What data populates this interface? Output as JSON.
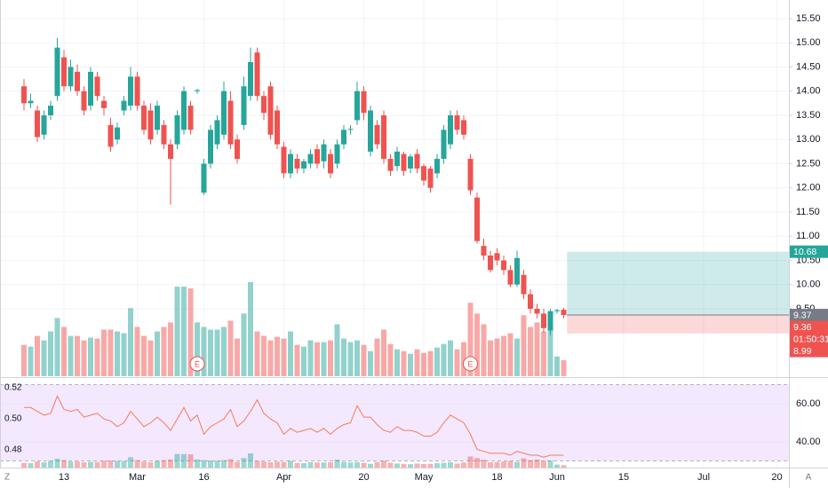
{
  "chart_data": [
    {
      "type": "candlestick",
      "up_color": "#26a69a",
      "down_color": "#ef5350",
      "grid": true,
      "x": [
        0,
        1,
        2,
        3,
        4,
        5,
        6,
        7,
        8,
        9,
        10,
        11,
        12,
        13,
        14,
        15,
        16,
        17,
        18,
        19,
        20,
        21,
        22,
        23,
        24,
        25,
        26,
        27,
        28,
        29,
        30,
        31,
        32,
        33,
        34,
        35,
        36,
        37,
        38,
        39,
        40,
        41,
        42,
        43,
        44,
        45,
        46,
        47,
        48,
        49,
        50,
        51,
        52,
        53,
        54,
        55,
        56,
        57,
        58,
        59,
        60,
        61,
        62,
        63,
        64,
        65,
        66,
        67,
        68,
        69,
        70,
        71,
        72,
        73,
        74,
        75,
        76,
        77,
        78,
        79,
        80,
        81
      ],
      "open": [
        14.1,
        13.75,
        13.6,
        13.1,
        13.5,
        13.9,
        14.7,
        14.1,
        14.4,
        14.0,
        13.7,
        14.3,
        13.8,
        13.3,
        13.0,
        13.6,
        13.7,
        14.3,
        13.7,
        13.6,
        13.2,
        13.3,
        12.9,
        12.9,
        13.2,
        13.7,
        14.0,
        11.9,
        12.5,
        12.9,
        13.1,
        13.8,
        13.0,
        13.3,
        13.9,
        14.8,
        13.9,
        14.1,
        13.6,
        12.85,
        12.3,
        12.6,
        12.4,
        12.5,
        12.8,
        12.55,
        12.7,
        12.5,
        12.9,
        13.2,
        13.4,
        14.0,
        12.75,
        13.3,
        13.5,
        12.6,
        12.45,
        12.7,
        12.4,
        12.7,
        12.45,
        12.4,
        12.3,
        12.6,
        12.9,
        13.5,
        13.4,
        12.6,
        11.8,
        10.8,
        10.6,
        10.65,
        10.5,
        10.3,
        10.0,
        10.2,
        9.8,
        9.5,
        9.4,
        9.05,
        9.45,
        9.48
      ],
      "high": [
        14.25,
        13.95,
        13.7,
        13.6,
        13.8,
        15.1,
        14.85,
        14.65,
        14.55,
        14.1,
        14.5,
        14.4,
        13.9,
        13.45,
        13.35,
        13.9,
        14.5,
        14.4,
        13.8,
        13.75,
        13.8,
        13.4,
        13.0,
        13.6,
        14.1,
        13.8,
        14.05,
        12.6,
        13.3,
        13.5,
        14.2,
        14.0,
        13.1,
        14.3,
        14.9,
        14.9,
        14.0,
        14.2,
        13.7,
        12.95,
        12.8,
        12.7,
        12.6,
        12.8,
        12.9,
        13.0,
        12.8,
        13.0,
        13.3,
        13.3,
        14.2,
        14.1,
        13.7,
        13.4,
        13.6,
        12.7,
        12.85,
        12.75,
        12.7,
        12.8,
        12.5,
        12.45,
        12.7,
        13.3,
        13.6,
        13.6,
        13.5,
        12.7,
        11.9,
        10.95,
        10.7,
        10.75,
        10.6,
        10.4,
        10.7,
        10.3,
        9.9,
        9.6,
        9.5,
        9.5,
        9.5,
        9.52
      ],
      "low": [
        13.6,
        13.65,
        12.95,
        13.0,
        13.4,
        13.8,
        14.0,
        14.0,
        13.9,
        13.5,
        13.6,
        13.8,
        13.5,
        12.75,
        12.9,
        13.5,
        13.6,
        13.6,
        13.1,
        12.9,
        13.1,
        12.8,
        11.65,
        12.8,
        13.1,
        13.1,
        13.95,
        11.85,
        12.4,
        12.8,
        13.0,
        12.8,
        12.5,
        13.2,
        13.8,
        13.8,
        13.4,
        13.0,
        12.8,
        12.2,
        12.2,
        12.3,
        12.3,
        12.4,
        12.4,
        12.4,
        12.2,
        12.4,
        12.8,
        13.1,
        13.3,
        13.4,
        12.65,
        12.8,
        12.5,
        12.25,
        12.35,
        12.25,
        12.3,
        12.3,
        12.05,
        11.9,
        12.2,
        12.5,
        12.8,
        13.1,
        13.0,
        11.85,
        10.85,
        10.5,
        10.25,
        10.4,
        10.2,
        9.95,
        9.95,
        9.7,
        9.4,
        9.3,
        9.0,
        8.95,
        9.4,
        9.3
      ],
      "close": [
        13.75,
        13.8,
        13.05,
        13.5,
        13.7,
        14.9,
        14.1,
        14.5,
        14.0,
        13.6,
        14.4,
        13.9,
        13.65,
        12.85,
        13.25,
        13.8,
        14.3,
        13.7,
        13.2,
        13.0,
        13.7,
        12.9,
        12.6,
        13.5,
        14.0,
        13.2,
        14.02,
        12.5,
        13.2,
        13.4,
        14.0,
        12.9,
        12.6,
        14.1,
        14.6,
        13.9,
        13.55,
        13.1,
        12.9,
        12.3,
        12.7,
        12.4,
        12.55,
        12.7,
        12.5,
        12.9,
        12.3,
        12.9,
        13.2,
        13.22,
        14.0,
        13.55,
        13.6,
        12.9,
        12.6,
        12.35,
        12.75,
        12.35,
        12.65,
        12.4,
        12.15,
        12.0,
        12.6,
        13.2,
        13.5,
        13.2,
        13.1,
        11.95,
        10.9,
        10.6,
        10.3,
        10.5,
        10.3,
        10.0,
        10.55,
        9.8,
        9.5,
        9.4,
        9.1,
        9.45,
        9.47,
        9.37
      ],
      "volume": [
        35,
        33,
        45,
        40,
        50,
        65,
        55,
        45,
        45,
        40,
        43,
        42,
        52,
        52,
        50,
        48,
        76,
        55,
        45,
        40,
        50,
        55,
        60,
        100,
        100,
        98,
        60,
        55,
        52,
        52,
        55,
        62,
        42,
        70,
        105,
        50,
        45,
        40,
        44,
        42,
        50,
        35,
        33,
        40,
        38,
        38,
        40,
        58,
        42,
        38,
        40,
        35,
        28,
        42,
        52,
        36,
        30,
        28,
        25,
        30,
        26,
        28,
        32,
        36,
        40,
        30,
        38,
        82,
        70,
        58,
        40,
        42,
        45,
        48,
        42,
        68,
        55,
        60,
        50,
        52,
        22,
        18
      ],
      "xlim": [
        -3.6,
        114.8
      ],
      "xticks": [
        {
          "value": 6,
          "label": "13"
        },
        {
          "value": 17,
          "label": "Mar"
        },
        {
          "value": 27,
          "label": "16"
        },
        {
          "value": 39,
          "label": "Apr"
        },
        {
          "value": 51,
          "label": "20"
        },
        {
          "value": 60,
          "label": "May"
        },
        {
          "value": 71,
          "label": "18"
        },
        {
          "value": 80,
          "label": "Jun"
        },
        {
          "value": 90,
          "label": "15"
        },
        {
          "value": 102,
          "label": "Jul"
        },
        {
          "value": 113,
          "label": "20"
        }
      ],
      "ylim": [
        8.105,
        15.885
      ],
      "yticks": [
        {
          "value": 9.5,
          "label": "9.50"
        },
        {
          "value": 10,
          "label": "10.00"
        },
        {
          "value": 10.5,
          "label": "10.50"
        },
        {
          "value": 11,
          "label": "11.00"
        },
        {
          "value": 11.5,
          "label": "11.50"
        },
        {
          "value": 12,
          "label": "12.00"
        },
        {
          "value": 12.5,
          "label": "12.50"
        },
        {
          "value": 13,
          "label": "13.00"
        },
        {
          "value": 13.5,
          "label": "13.50"
        },
        {
          "value": 14,
          "label": "14.00"
        },
        {
          "value": 14.5,
          "label": "14.50"
        },
        {
          "value": 15,
          "label": "15.00"
        },
        {
          "value": 15.5,
          "label": "15.50"
        }
      ],
      "events": [
        {
          "x": 26,
          "label": "E"
        },
        {
          "x": 67,
          "label": "E"
        }
      ],
      "position": {
        "start": 81.5,
        "entry": 9.37,
        "target": 10.68,
        "stop": 8.99
      },
      "price_labels": [
        {
          "value": 10.68,
          "label": "10.68",
          "color": "#26a69a"
        },
        {
          "value": 9.37,
          "label": "9.37",
          "color": "#787b86"
        },
        {
          "value": 9.36,
          "label": "9.36",
          "color": "#ef5350"
        },
        {
          "label": "01:50:31",
          "color": "#ef5350"
        },
        {
          "value": 8.99,
          "label": "8.99",
          "color": "#ef5350"
        }
      ],
      "footer": {
        "left": "Z",
        "right": "A"
      }
    },
    {
      "type": "line",
      "series": [
        {
          "color": "#f57c5a",
          "axis": "y2",
          "values": [
            58,
            58,
            56,
            54,
            55,
            64,
            57,
            56,
            57,
            53,
            54,
            55,
            52,
            51,
            48,
            50,
            56,
            52,
            48,
            50,
            53,
            50,
            46,
            52,
            58,
            51,
            54,
            44,
            48,
            50,
            52,
            57,
            48,
            51,
            56,
            62,
            55,
            52,
            50,
            44,
            47,
            45,
            46,
            47,
            45,
            47,
            44,
            47,
            49,
            50,
            59,
            53,
            53,
            49,
            46,
            45,
            48,
            46,
            46,
            45,
            43,
            43,
            45,
            50,
            54,
            52,
            50,
            44,
            36,
            35,
            34,
            34,
            34,
            33,
            35,
            34,
            33,
            33,
            32,
            33,
            33,
            33
          ]
        }
      ],
      "band": [
        30,
        70
      ],
      "band_color": "#f3e8fd",
      "ylim": [
        0.4686,
        0.5263
      ],
      "yticks": [
        {
          "value": 0.48,
          "label": "0.48"
        },
        {
          "value": 0.5,
          "label": "0.50"
        },
        {
          "value": 0.52,
          "label": "0.52"
        }
      ],
      "y2lim": [
        26.5,
        73.5
      ],
      "y2ticks": [
        {
          "value": 40,
          "label": "40.00"
        },
        {
          "value": 60,
          "label": "60.00"
        }
      ]
    }
  ]
}
